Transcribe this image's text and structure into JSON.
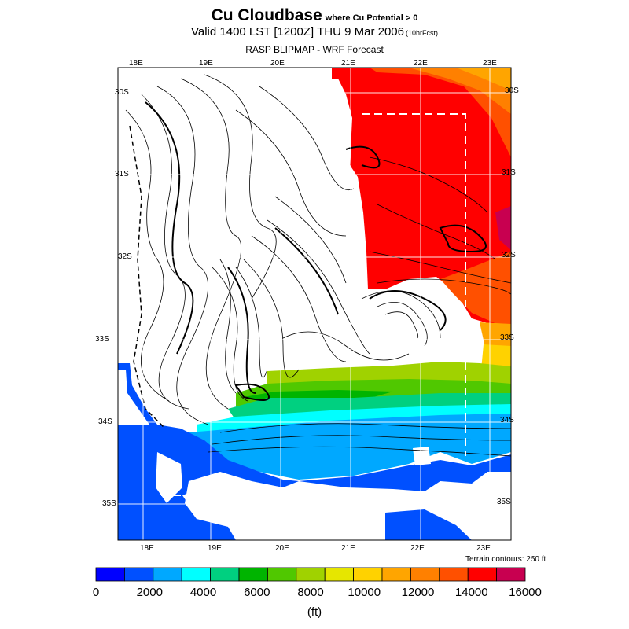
{
  "title": {
    "main": "Cu Cloudbase",
    "qualifier": "where Cu Potential > 0",
    "valid": "Valid 1400 LST [1200Z] THU 9 Mar 2006",
    "forecast_hours": "(10hrFcst)",
    "source": "RASP BLIPMAP - WRF Forecast"
  },
  "axes": {
    "top_lon": [
      "18E",
      "19E",
      "20E",
      "21E",
      "22E",
      "23E"
    ],
    "bottom_lon": [
      "18E",
      "19E",
      "20E",
      "21E",
      "22E",
      "23E"
    ],
    "left_lat": [
      "30S",
      "31S",
      "32S",
      "33S",
      "34S",
      "35S"
    ],
    "right_lat": [
      "30S",
      "31S",
      "32S",
      "33S",
      "34S",
      "35S"
    ]
  },
  "terrain_note": "Terrain contours: 250 ft",
  "colorbar": {
    "colors": [
      "#0000ff",
      "#0050ff",
      "#00a8ff",
      "#00ffff",
      "#00d080",
      "#00b400",
      "#50c800",
      "#a0d200",
      "#e6e600",
      "#ffd200",
      "#ffa500",
      "#ff8000",
      "#ff5000",
      "#ff0000",
      "#c80050"
    ],
    "labels": [
      "0",
      "2000",
      "4000",
      "6000",
      "8000",
      "10000",
      "12000",
      "14000",
      "16000"
    ],
    "units": "(ft)"
  }
}
